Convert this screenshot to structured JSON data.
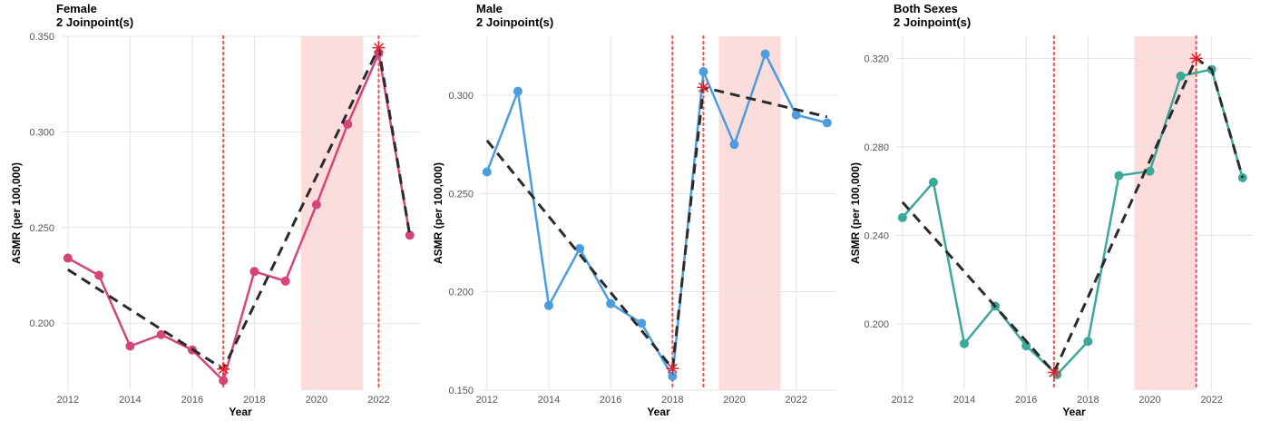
{
  "chart_data": [
    {
      "type": "line",
      "title": "Female",
      "subtitle": "2 Joinpoint(s)",
      "xlabel": "Year",
      "ylabel": "ASMR (per 100,000)",
      "xlim": [
        2011.8,
        2023.3
      ],
      "ylim": [
        0.165,
        0.35
      ],
      "xticks": [
        2012,
        2014,
        2016,
        2018,
        2020,
        2022
      ],
      "yticks": [
        0.2,
        0.25,
        0.3,
        0.35
      ],
      "ytick_labels": [
        "0.200",
        "0.250",
        "0.300",
        "0.350"
      ],
      "color": "#d6457a",
      "x": [
        2012,
        2013,
        2014,
        2015,
        2016,
        2017,
        2018,
        2019,
        2020,
        2021,
        2022,
        2023
      ],
      "values": [
        0.234,
        0.225,
        0.188,
        0.194,
        0.186,
        0.17,
        0.227,
        0.222,
        0.262,
        0.304,
        0.341,
        0.246
      ],
      "fit": [
        [
          2012,
          0.228
        ],
        [
          2017,
          0.176
        ],
        [
          2022,
          0.344
        ],
        [
          2023,
          0.246
        ]
      ],
      "joinpoints": [
        [
          2017,
          0.176
        ],
        [
          2022,
          0.344
        ]
      ],
      "vlines": [
        2017,
        2022
      ],
      "shaded_range": [
        2019.5,
        2021.5
      ],
      "grid": true
    },
    {
      "type": "line",
      "title": "Male",
      "subtitle": "2 Joinpoint(s)",
      "xlabel": "Year",
      "ylabel": "ASMR (per 100,000)",
      "xlim": [
        2011.8,
        2023.3
      ],
      "ylim": [
        0.15,
        0.33
      ],
      "xticks": [
        2012,
        2014,
        2016,
        2018,
        2020,
        2022
      ],
      "yticks": [
        0.15,
        0.2,
        0.25,
        0.3
      ],
      "ytick_labels": [
        "0.150",
        "0.200",
        "0.250",
        "0.300"
      ],
      "color": "#4a9ddf",
      "x": [
        2012,
        2013,
        2014,
        2015,
        2016,
        2017,
        2018,
        2019,
        2020,
        2021,
        2022,
        2023
      ],
      "values": [
        0.261,
        0.302,
        0.193,
        0.222,
        0.194,
        0.184,
        0.157,
        0.312,
        0.275,
        0.321,
        0.29,
        0.286
      ],
      "fit": [
        [
          2012,
          0.277
        ],
        [
          2018,
          0.161
        ],
        [
          2019,
          0.304
        ],
        [
          2023,
          0.289
        ]
      ],
      "joinpoints": [
        [
          2018,
          0.161
        ],
        [
          2019,
          0.304
        ]
      ],
      "vlines": [
        2018,
        2019
      ],
      "shaded_range": [
        2019.5,
        2021.5
      ],
      "grid": true
    },
    {
      "type": "line",
      "title": "Both Sexes",
      "subtitle": "2 Joinpoint(s)",
      "xlabel": "Year",
      "ylabel": "ASMR (per 100,000)",
      "xlim": [
        2011.8,
        2023.3
      ],
      "ylim": [
        0.17,
        0.33
      ],
      "xticks": [
        2012,
        2014,
        2016,
        2018,
        2020,
        2022
      ],
      "yticks": [
        0.2,
        0.24,
        0.28,
        0.32
      ],
      "ytick_labels": [
        "0.200",
        "0.240",
        "0.280",
        "0.320"
      ],
      "color": "#3ba89a",
      "x": [
        2012,
        2013,
        2014,
        2015,
        2016,
        2017,
        2018,
        2019,
        2020,
        2021,
        2022,
        2023
      ],
      "values": [
        0.248,
        0.264,
        0.191,
        0.208,
        0.19,
        0.177,
        0.192,
        0.267,
        0.269,
        0.312,
        0.315,
        0.266
      ],
      "fit": [
        [
          2012,
          0.255
        ],
        [
          2016.9,
          0.178
        ],
        [
          2021.5,
          0.32
        ],
        [
          2022,
          0.315
        ],
        [
          2023,
          0.266
        ]
      ],
      "joinpoints": [
        [
          2016.9,
          0.178
        ],
        [
          2021.5,
          0.32
        ]
      ],
      "vlines": [
        2016.9,
        2021.5
      ],
      "shaded_range": [
        2019.5,
        2021.5
      ],
      "grid": true
    }
  ]
}
